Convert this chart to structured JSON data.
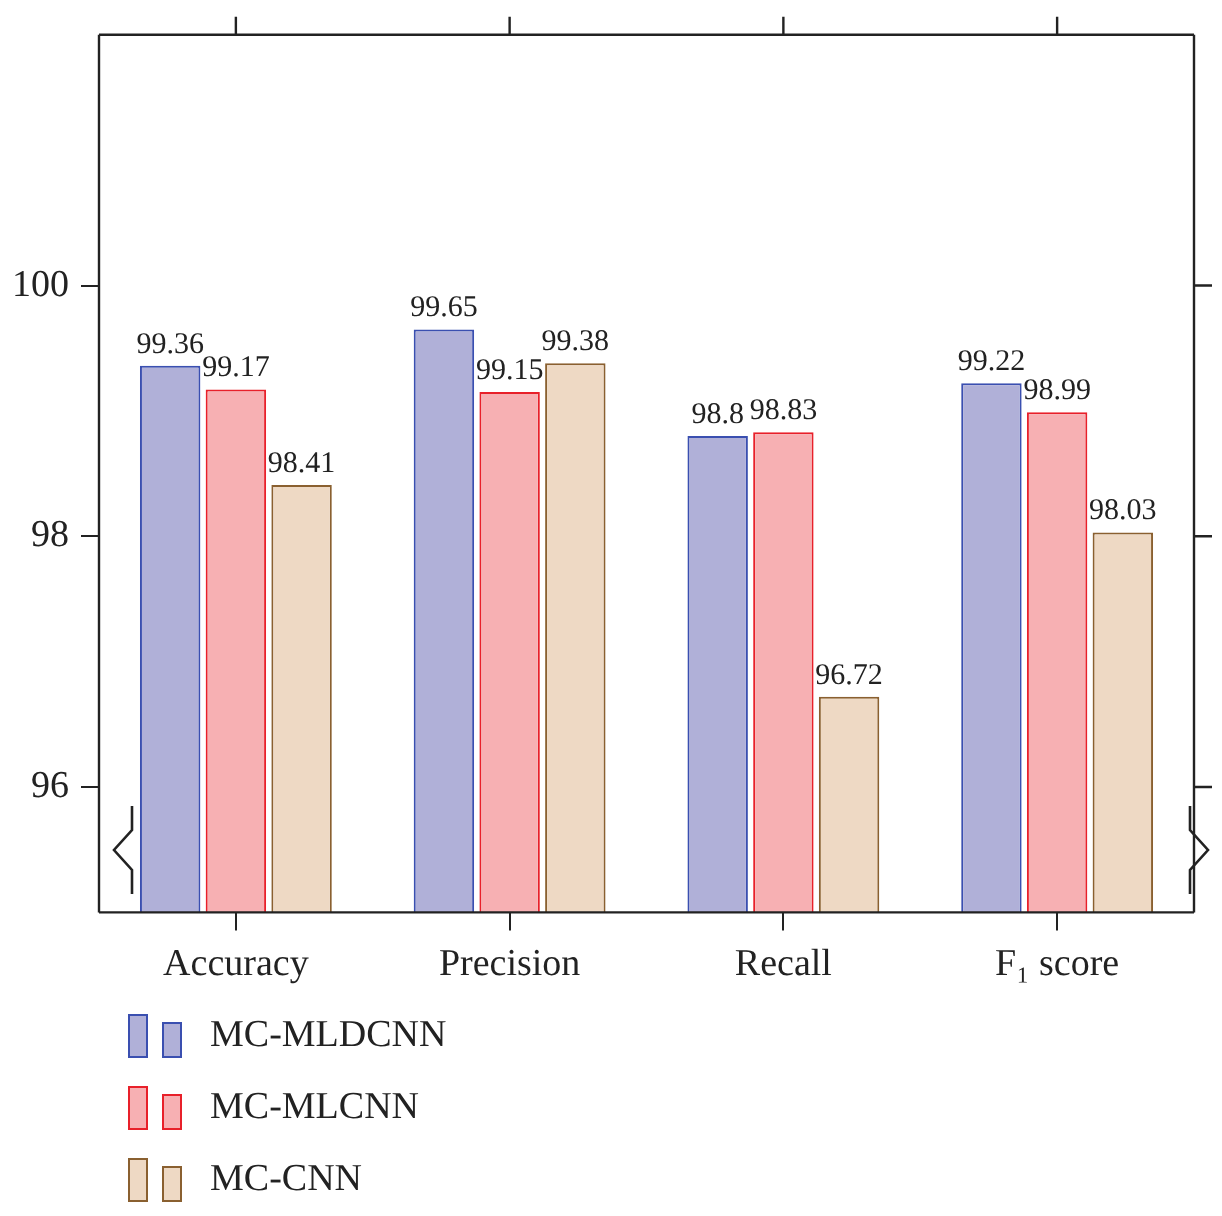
{
  "chart_data": {
    "type": "bar",
    "categories": [
      "Accuracy",
      "Precision",
      "Recall",
      "F₁ score"
    ],
    "series": [
      {
        "name": "MC-MLDCNN",
        "color": "#b0b0d8",
        "values": [
          99.36,
          99.65,
          98.8,
          99.22
        ]
      },
      {
        "name": "MC-MLCNN",
        "color": "#f7b0b3",
        "values": [
          99.17,
          99.15,
          98.83,
          98.99
        ]
      },
      {
        "name": "MC-CNN",
        "color": "#eed9c4",
        "values": [
          98.41,
          99.38,
          96.72,
          98.03
        ]
      }
    ],
    "ylim": [
      95,
      102
    ],
    "yticks": [
      96,
      98,
      100
    ],
    "grid": false,
    "legend": "bottom left",
    "data_labels": true
  }
}
